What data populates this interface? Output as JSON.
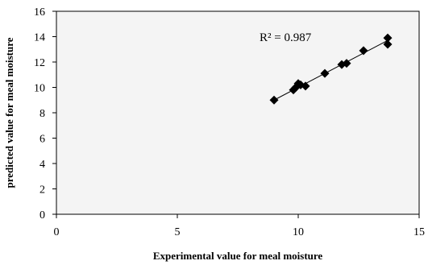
{
  "chart_data": {
    "type": "scatter",
    "xlabel": "Experimental value for meal moisture",
    "ylabel": "predicted value for meal moisture",
    "xlim": [
      0,
      15
    ],
    "ylim": [
      0,
      16
    ],
    "x_ticks": [
      "0",
      "5",
      "10",
      "15"
    ],
    "y_ticks": [
      "0",
      "2",
      "4",
      "6",
      "8",
      "10",
      "12",
      "14",
      "16"
    ],
    "grid": false,
    "legend": "none",
    "annotation": "R² = 0.987",
    "series": [
      {
        "marker": "diamond",
        "color": "#000000",
        "points": [
          {
            "x": 9.0,
            "y": 9.0
          },
          {
            "x": 9.8,
            "y": 9.8
          },
          {
            "x": 9.9,
            "y": 10.0
          },
          {
            "x": 10.0,
            "y": 10.3
          },
          {
            "x": 10.1,
            "y": 10.2
          },
          {
            "x": 10.3,
            "y": 10.1
          },
          {
            "x": 11.1,
            "y": 11.1
          },
          {
            "x": 11.8,
            "y": 11.8
          },
          {
            "x": 12.0,
            "y": 11.9
          },
          {
            "x": 12.7,
            "y": 12.9
          },
          {
            "x": 13.7,
            "y": 13.4
          },
          {
            "x": 13.7,
            "y": 13.9
          }
        ]
      }
    ],
    "trendline": {
      "x_start": 9.0,
      "x_end": 13.7,
      "slope": 1.0,
      "intercept": 0.0,
      "color": "#000000"
    }
  }
}
